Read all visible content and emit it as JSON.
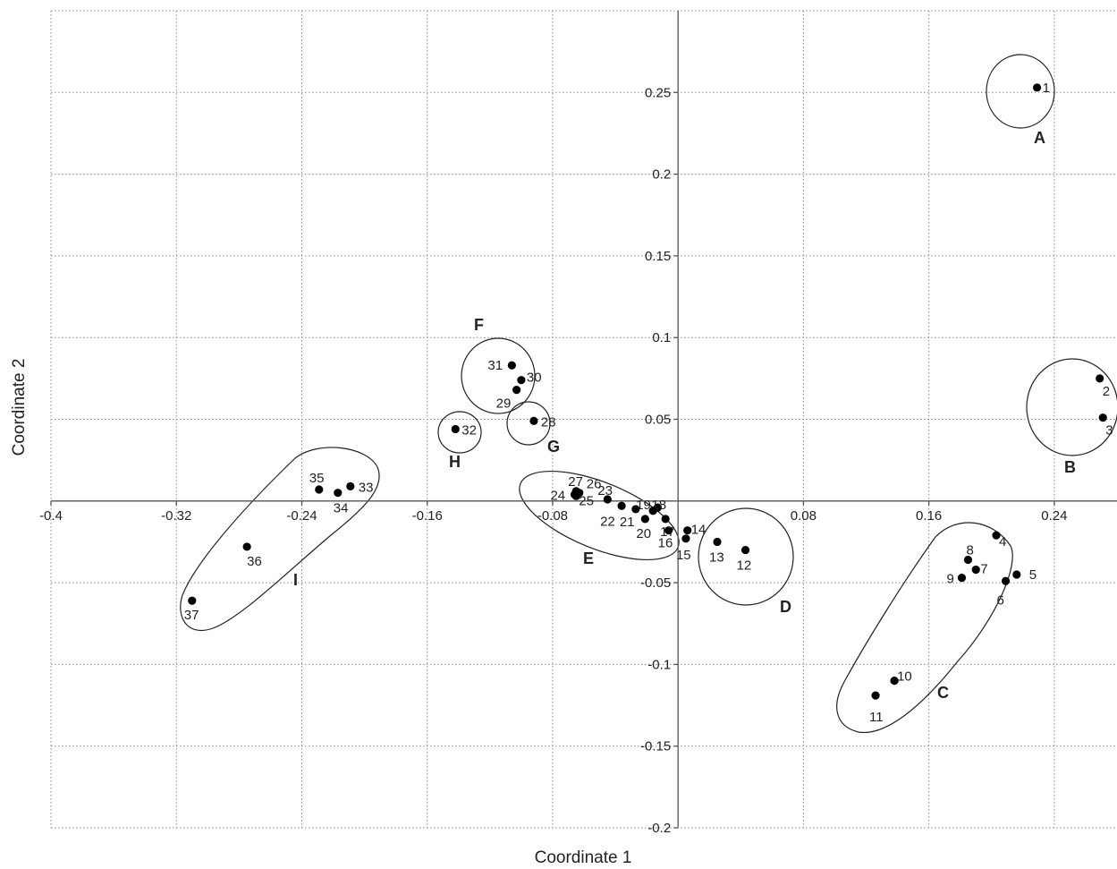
{
  "chart_data": {
    "type": "scatter",
    "xlabel": "Coordinate 1",
    "ylabel": "Coordinate 2",
    "xlim": [
      -0.4,
      0.28
    ],
    "ylim": [
      -0.2,
      0.3
    ],
    "xticks": [
      -0.4,
      -0.32,
      -0.24,
      -0.16,
      -0.08,
      0.08,
      0.16,
      0.24
    ],
    "xtick_labels": [
      "-0.4",
      "-0.32",
      "-0.24",
      "-0.16",
      "-0.08",
      "0.08",
      "0.16",
      "0.24"
    ],
    "yticks": [
      0.25,
      0.2,
      0.15,
      0.1,
      0.05,
      -0.05,
      -0.1,
      -0.15,
      -0.2
    ],
    "ytick_labels": [
      "0.25",
      "0.2",
      "0.15",
      "0.1",
      "0.05",
      "-0.05",
      "-0.1",
      "-0.15",
      "-0.2"
    ],
    "grid": true,
    "points": [
      {
        "id": "1",
        "x": 0.229,
        "y": 0.253
      },
      {
        "id": "2",
        "x": 0.269,
        "y": 0.075
      },
      {
        "id": "3",
        "x": 0.271,
        "y": 0.051
      },
      {
        "id": "4",
        "x": 0.203,
        "y": -0.021
      },
      {
        "id": "5",
        "x": 0.216,
        "y": -0.045
      },
      {
        "id": "6",
        "x": 0.209,
        "y": -0.049
      },
      {
        "id": "7",
        "x": 0.19,
        "y": -0.042
      },
      {
        "id": "8",
        "x": 0.185,
        "y": -0.036
      },
      {
        "id": "9",
        "x": 0.181,
        "y": -0.047
      },
      {
        "id": "10",
        "x": 0.138,
        "y": -0.11
      },
      {
        "id": "11",
        "x": 0.126,
        "y": -0.119
      },
      {
        "id": "12",
        "x": 0.043,
        "y": -0.03
      },
      {
        "id": "13",
        "x": 0.025,
        "y": -0.025
      },
      {
        "id": "14",
        "x": 0.006,
        "y": -0.018
      },
      {
        "id": "15",
        "x": 0.005,
        "y": -0.023
      },
      {
        "id": "16",
        "x": -0.006,
        "y": -0.018
      },
      {
        "id": "17",
        "x": -0.008,
        "y": -0.011
      },
      {
        "id": "18",
        "x": -0.013,
        "y": -0.004
      },
      {
        "id": "19",
        "x": -0.016,
        "y": -0.006
      },
      {
        "id": "20",
        "x": -0.021,
        "y": -0.011
      },
      {
        "id": "21",
        "x": -0.027,
        "y": -0.005
      },
      {
        "id": "22",
        "x": -0.036,
        "y": -0.003
      },
      {
        "id": "23",
        "x": -0.045,
        "y": 0.001
      },
      {
        "id": "24",
        "x": -0.066,
        "y": 0.004
      },
      {
        "id": "25",
        "x": -0.065,
        "y": 0.003
      },
      {
        "id": "26",
        "x": -0.063,
        "y": 0.005
      },
      {
        "id": "27",
        "x": -0.065,
        "y": 0.006
      },
      {
        "id": "28",
        "x": -0.092,
        "y": 0.049
      },
      {
        "id": "29",
        "x": -0.103,
        "y": 0.068
      },
      {
        "id": "30",
        "x": -0.1,
        "y": 0.074
      },
      {
        "id": "31",
        "x": -0.106,
        "y": 0.083
      },
      {
        "id": "32",
        "x": -0.142,
        "y": 0.044
      },
      {
        "id": "33",
        "x": -0.209,
        "y": 0.009
      },
      {
        "id": "34",
        "x": -0.217,
        "y": 0.005
      },
      {
        "id": "35",
        "x": -0.229,
        "y": 0.007
      },
      {
        "id": "36",
        "x": -0.275,
        "y": -0.028
      },
      {
        "id": "37",
        "x": -0.31,
        "y": -0.061
      }
    ],
    "groups": [
      {
        "label": "A",
        "members": [
          "1"
        ]
      },
      {
        "label": "B",
        "members": [
          "2",
          "3"
        ]
      },
      {
        "label": "C",
        "members": [
          "4",
          "5",
          "6",
          "7",
          "8",
          "9",
          "10",
          "11"
        ]
      },
      {
        "label": "D",
        "members": [
          "12"
        ]
      },
      {
        "label": "E",
        "members": [
          "13",
          "14",
          "15",
          "16",
          "17",
          "18",
          "19",
          "20",
          "21",
          "22",
          "23",
          "24",
          "25",
          "26",
          "27"
        ]
      },
      {
        "label": "F",
        "members": [
          "29",
          "30",
          "31"
        ]
      },
      {
        "label": "G",
        "members": [
          "28"
        ]
      },
      {
        "label": "H",
        "members": [
          "32"
        ]
      },
      {
        "label": "I",
        "members": [
          "33",
          "34",
          "35",
          "36",
          "37"
        ]
      }
    ]
  }
}
